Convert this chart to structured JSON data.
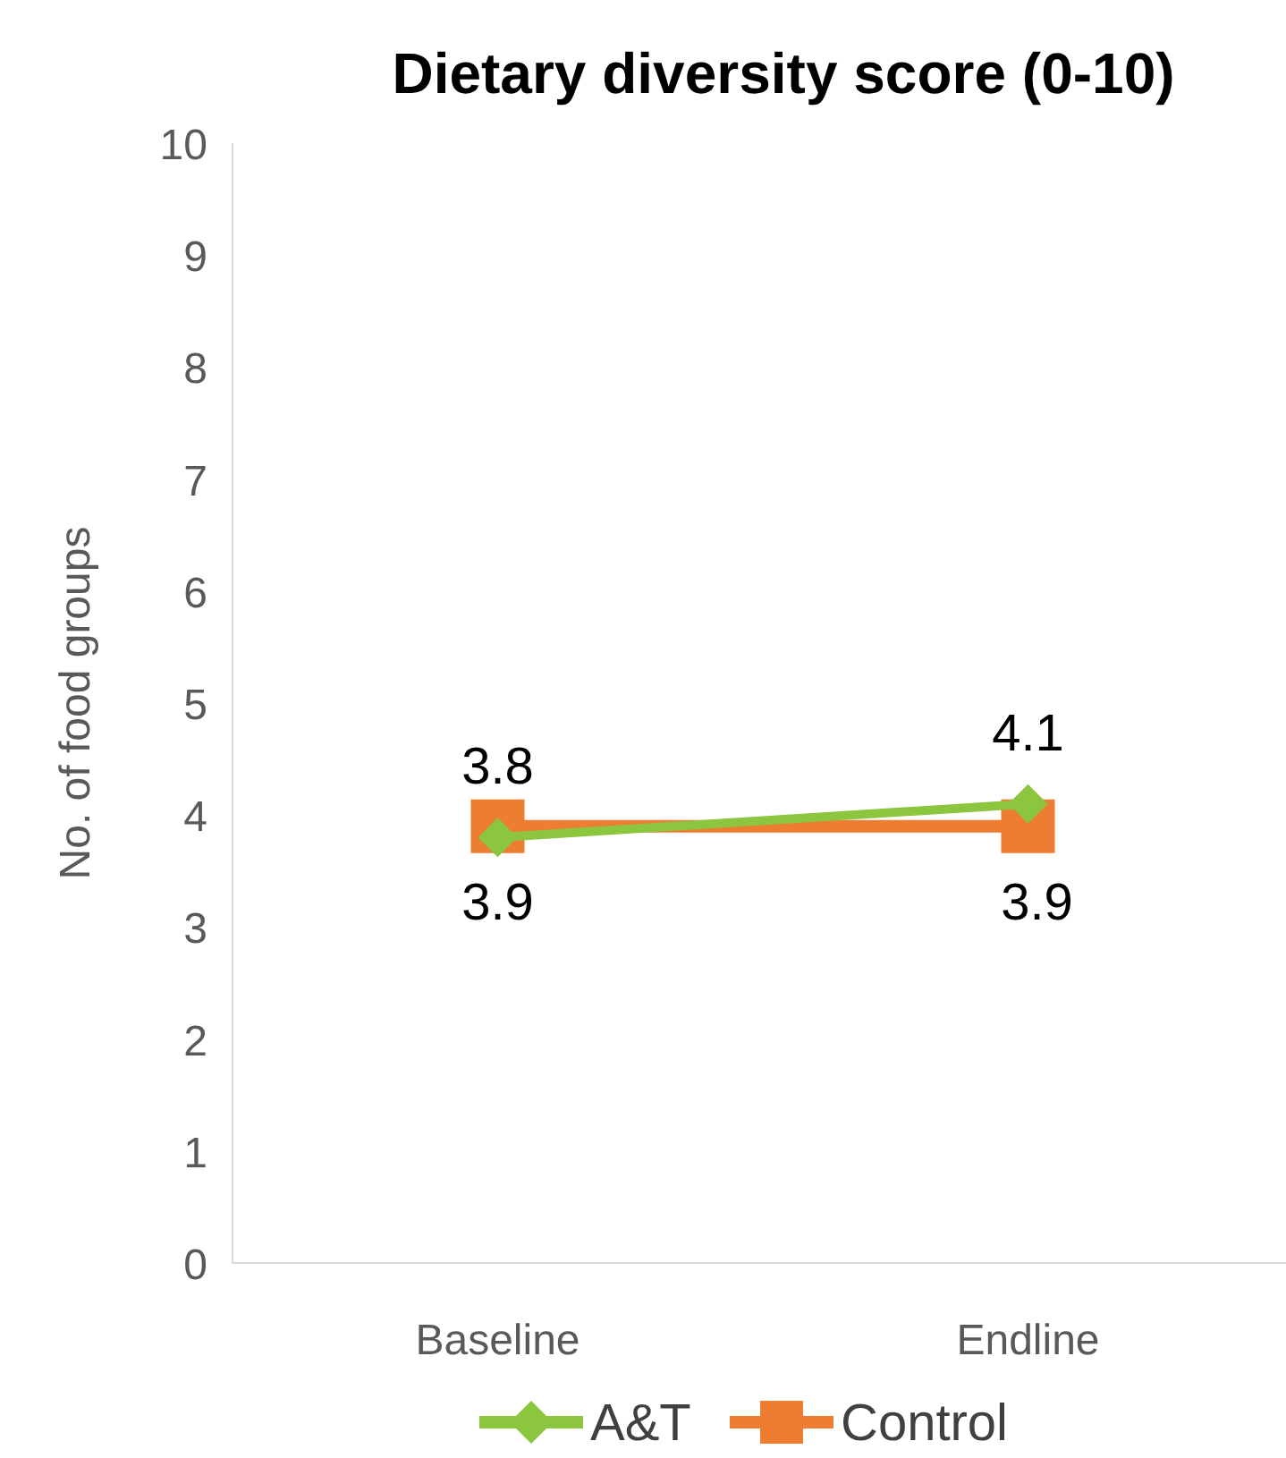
{
  "chart_data": {
    "type": "line",
    "title": "Dietary diversity score (0-10)",
    "ylabel": "No. of food groups",
    "categories": [
      "Baseline",
      "Endline"
    ],
    "series": [
      {
        "name": "A&T",
        "color": "#8cc63f",
        "values": [
          3.8,
          4.1
        ],
        "marker": "diamond"
      },
      {
        "name": "Control",
        "color": "#ed7d31",
        "values": [
          3.9,
          3.9
        ],
        "marker": "square"
      }
    ],
    "ylim": [
      0,
      10
    ],
    "yticks": [
      0,
      1,
      2,
      3,
      4,
      5,
      6,
      7,
      8,
      9,
      10
    ],
    "grid": false,
    "legend": "bottom",
    "data_labels": true
  }
}
